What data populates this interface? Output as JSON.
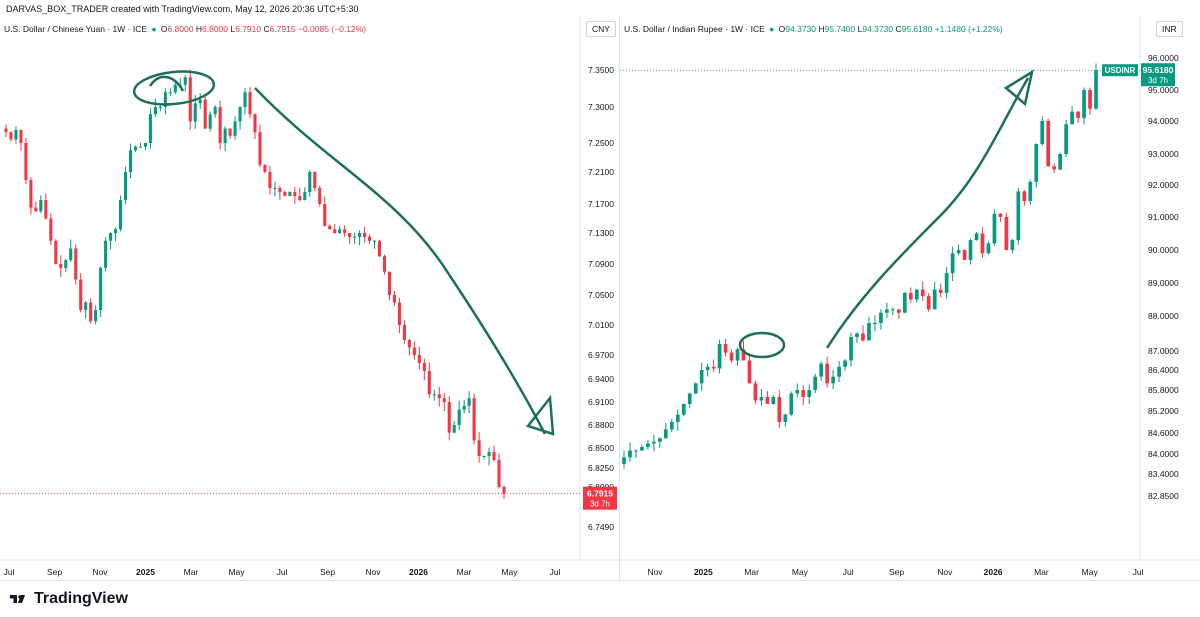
{
  "credit": "DARVAS_BOX_TRADER created with TradingView.com, May 12, 2026 20:36 UTC+5:30",
  "brand": "TradingView",
  "chart_data": [
    {
      "type": "candlestick",
      "title": "U.S. Dollar / Chinese Yuan",
      "interval": "1W",
      "source": "ICE",
      "ohlc_header": {
        "O": "6.8000",
        "H": "6.8000",
        "L": "6.7910",
        "C": "6.7915",
        "change": "−0.0085 (−0.12%)"
      },
      "currency": "CNY",
      "last_price": "6.7915",
      "countdown": "3d 7h",
      "y_ticks": [
        "7.3500",
        "7.3000",
        "7.2500",
        "7.2100",
        "7.1700",
        "7.1300",
        "7.0900",
        "7.0500",
        "7.0100",
        "6.9700",
        "6.9400",
        "6.9100",
        "6.8800",
        "6.8500",
        "6.8250",
        "6.8000",
        "6.7490"
      ],
      "x_ticks": [
        "Jul",
        "Sep",
        "Nov",
        "2025",
        "Mar",
        "May",
        "Jul",
        "Sep",
        "Nov",
        "2026",
        "Mar",
        "May",
        "Jul"
      ],
      "y_range": [
        6.74,
        7.37
      ],
      "closes": [
        7.265,
        7.255,
        7.268,
        7.25,
        7.2,
        7.165,
        7.16,
        7.175,
        7.15,
        7.12,
        7.09,
        7.085,
        7.095,
        7.11,
        7.07,
        7.03,
        7.04,
        7.015,
        7.03,
        7.085,
        7.12,
        7.13,
        7.135,
        7.175,
        7.21,
        7.24,
        7.245,
        7.245,
        7.25,
        7.29,
        7.3,
        7.3,
        7.32,
        7.32,
        7.33,
        7.33,
        7.34,
        7.28,
        7.305,
        7.31,
        7.27,
        7.29,
        7.3,
        7.25,
        7.27,
        7.26,
        7.28,
        7.3,
        7.32,
        7.29,
        7.265,
        7.22,
        7.21,
        7.19,
        7.19,
        7.185,
        7.18,
        7.185,
        7.18,
        7.175,
        7.185,
        7.21,
        7.19,
        7.17,
        7.14,
        7.135,
        7.13,
        7.135,
        7.13,
        7.125,
        7.125,
        7.13,
        7.125,
        7.12,
        7.12,
        7.1,
        7.08,
        7.05,
        7.04,
        7.01,
        6.99,
        6.98,
        6.97,
        6.96,
        6.95,
        6.92,
        6.92,
        6.915,
        6.91,
        6.87,
        6.88,
        6.9,
        6.905,
        6.915,
        6.86,
        6.84,
        6.84,
        6.845,
        6.835,
        6.8,
        6.7915
      ]
    },
    {
      "type": "candlestick",
      "title": "U.S. Dollar / Indian Rupee",
      "interval": "1W",
      "source": "ICE",
      "ohlc_header": {
        "O": "94.3730",
        "H": "95.7400",
        "L": "94.3730",
        "C": "95.6180",
        "change": "+1.1480 (+1.22%)"
      },
      "currency": "INR",
      "symbol": "USDINR",
      "last_price": "95.6180",
      "countdown": "3d 7h",
      "y_ticks": [
        "96.0000",
        "95.0000",
        "94.0000",
        "93.0000",
        "92.0000",
        "91.0000",
        "90.0000",
        "89.0000",
        "88.0000",
        "87.0000",
        "86.4000",
        "85.8000",
        "85.2000",
        "84.6000",
        "84.0000",
        "83.4000",
        "82.8500"
      ],
      "x_ticks": [
        "Nov",
        "2025",
        "Mar",
        "May",
        "Jul",
        "Sep",
        "Nov",
        "2026",
        "Mar",
        "May",
        "Jul"
      ],
      "closes": [
        83.9,
        84.1,
        84.1,
        84.2,
        84.3,
        84.35,
        84.45,
        84.7,
        84.9,
        85.1,
        85.4,
        85.7,
        86.0,
        86.4,
        86.5,
        86.45,
        87.2,
        86.95,
        86.7,
        87.05,
        86.7,
        86.0,
        85.5,
        85.6,
        85.4,
        85.6,
        84.9,
        85.1,
        85.7,
        85.8,
        85.6,
        85.8,
        86.2,
        86.6,
        86.0,
        86.2,
        86.5,
        86.7,
        87.4,
        87.5,
        87.3,
        87.8,
        87.8,
        88.1,
        88.2,
        88.2,
        88.1,
        88.7,
        88.5,
        88.8,
        88.6,
        88.2,
        88.8,
        88.7,
        89.3,
        89.9,
        90.0,
        89.7,
        90.3,
        90.5,
        89.9,
        90.2,
        91.1,
        91.0,
        90.0,
        90.3,
        91.8,
        91.5,
        92.1,
        93.3,
        94.0,
        92.6,
        92.5,
        93.0,
        93.9,
        94.3,
        94.1,
        95.0,
        94.4,
        95.618
      ]
    }
  ]
}
